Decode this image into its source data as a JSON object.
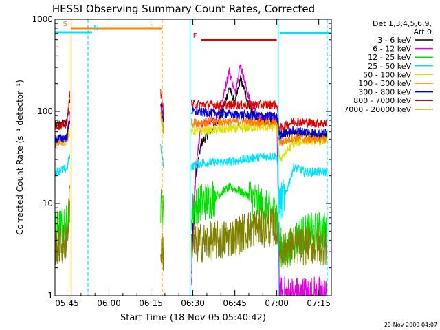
{
  "chart_data": {
    "type": "line",
    "title": "HESSI Observing Summary Count Rates, Corrected",
    "xlabel": "Start Time (18-Nov-05 05:40:42)",
    "ylabel": "Corrected Count Rate (s⁻¹ detector⁻¹)",
    "yscale": "log",
    "ylim": [
      1,
      1000
    ],
    "xlim": [
      "05:40:42",
      "07:19:30"
    ],
    "x_ticks": [
      "05:45",
      "06:00",
      "06:15",
      "06:30",
      "06:45",
      "07:00",
      "07:15"
    ],
    "y_ticks": [
      "1",
      "10",
      "100",
      "1000"
    ],
    "legend_title": "Det 1,3,4,5,6,9,\nAtt 0",
    "legend_position": "right",
    "footer_date": "29-Nov-2009 04:07",
    "flags": [
      {
        "label": "S",
        "start": "05:46:30",
        "end": "06:19:00",
        "color": "#ff8000"
      },
      {
        "label": "N",
        "start": "05:40:42",
        "end": "05:54:00",
        "color": "#00e0ff"
      },
      {
        "label": "F",
        "start": "06:33:00",
        "end": "07:00:00",
        "color": "#e00000"
      },
      {
        "label": "",
        "start": "07:01:00",
        "end": "07:19:30",
        "color": "#00e0ff"
      }
    ],
    "vlines": [
      {
        "t": "05:46:30",
        "color": "#ff8000",
        "style": "solid"
      },
      {
        "t": "05:52:30",
        "color": "#00e0ff",
        "style": "dashed"
      },
      {
        "t": "06:19:00",
        "color": "#ff8000",
        "style": "dashed"
      },
      {
        "t": "06:29:00",
        "color": "#00e0ff",
        "style": "solid"
      },
      {
        "t": "07:00:30",
        "color": "#00e0ff",
        "style": "solid"
      },
      {
        "t": "07:18:00",
        "color": "#00e0ff",
        "style": "dashed"
      }
    ],
    "segments": [
      {
        "start": "05:40:42",
        "end": "05:46:00"
      },
      {
        "start": "06:18:30",
        "end": "06:19:40"
      },
      {
        "start": "06:29:30",
        "end": "07:18:00"
      }
    ],
    "series": [
      {
        "name": "3 - 6 keV",
        "color": "#000000",
        "points": [
          [
            "05:40:42",
            70
          ],
          [
            "05:45:00",
            75
          ],
          [
            "05:45:50",
            130
          ],
          [
            "06:18:30",
            120
          ],
          [
            "06:19:40",
            80
          ],
          [
            "06:29:30",
            2
          ],
          [
            "06:31:00",
            20
          ],
          [
            "06:33:00",
            45
          ],
          [
            "06:36:00",
            60
          ],
          [
            "06:40:00",
            90
          ],
          [
            "06:43:00",
            180
          ],
          [
            "06:45:00",
            120
          ],
          [
            "06:47:00",
            230
          ],
          [
            "06:50:00",
            120
          ],
          [
            "06:53:00",
            80
          ],
          [
            "06:58:00",
            80
          ],
          [
            "07:00:00",
            78
          ],
          [
            "07:01:00",
            60
          ],
          [
            "07:03:00",
            58
          ],
          [
            "07:06:00",
            58
          ],
          [
            "07:10:00",
            56
          ],
          [
            "07:15:00",
            54
          ],
          [
            "07:18:00",
            53
          ]
        ]
      },
      {
        "name": "6 - 12 keV",
        "color": "#e000e0",
        "points": [
          [
            "05:40:42",
            45
          ],
          [
            "05:45:00",
            48
          ],
          [
            "05:45:50",
            90
          ],
          [
            "06:18:30",
            110
          ],
          [
            "06:19:40",
            70
          ],
          [
            "06:29:30",
            1.5
          ],
          [
            "06:31:00",
            25
          ],
          [
            "06:33:00",
            70
          ],
          [
            "06:35:00",
            75
          ],
          [
            "06:38:00",
            80
          ],
          [
            "06:41:00",
            150
          ],
          [
            "06:43:00",
            280
          ],
          [
            "06:45:00",
            160
          ],
          [
            "06:47:00",
            320
          ],
          [
            "06:50:00",
            140
          ],
          [
            "06:53:00",
            90
          ],
          [
            "06:58:00",
            85
          ],
          [
            "07:00:00",
            82
          ],
          [
            "07:01:00",
            1
          ],
          [
            "07:18:00",
            1
          ]
        ]
      },
      {
        "name": "12 - 25 keV",
        "color": "#00e000",
        "points": [
          [
            "05:40:42",
            5
          ],
          [
            "05:45:00",
            6
          ],
          [
            "05:45:50",
            9
          ],
          [
            "06:18:30",
            10
          ],
          [
            "06:19:40",
            7
          ],
          [
            "06:29:30",
            8
          ],
          [
            "06:32:00",
            10
          ],
          [
            "06:36:00",
            11
          ],
          [
            "06:40:00",
            13
          ],
          [
            "06:43:00",
            15
          ],
          [
            "06:46:00",
            14
          ],
          [
            "06:50:00",
            12
          ],
          [
            "06:55:00",
            9
          ],
          [
            "06:58:00",
            8
          ],
          [
            "07:00:00",
            8
          ],
          [
            "07:01:00",
            3.5
          ],
          [
            "07:03:00",
            3
          ],
          [
            "07:08:00",
            4.5
          ],
          [
            "07:15:00",
            5
          ],
          [
            "07:18:00",
            5
          ]
        ]
      },
      {
        "name": "25 - 50 keV",
        "color": "#00e0ff",
        "points": [
          [
            "05:40:42",
            22
          ],
          [
            "05:45:00",
            24
          ],
          [
            "05:45:50",
            32
          ],
          [
            "06:18:30",
            40
          ],
          [
            "06:19:40",
            25
          ],
          [
            "06:29:30",
            25
          ],
          [
            "06:32:00",
            27
          ],
          [
            "06:36:00",
            28
          ],
          [
            "06:42:00",
            28
          ],
          [
            "06:48:00",
            30
          ],
          [
            "06:54:00",
            32
          ],
          [
            "07:00:00",
            33
          ],
          [
            "07:01:00",
            10
          ],
          [
            "07:03:00",
            12
          ],
          [
            "07:06:00",
            25
          ],
          [
            "07:10:00",
            22
          ],
          [
            "07:15:00",
            22
          ],
          [
            "07:18:00",
            22
          ]
        ]
      },
      {
        "name": "50 - 100 keV",
        "color": "#e0e000",
        "points": [
          [
            "05:40:42",
            45
          ],
          [
            "05:45:00",
            47
          ],
          [
            "05:45:50",
            60
          ],
          [
            "06:18:30",
            90
          ],
          [
            "06:19:40",
            55
          ],
          [
            "06:29:30",
            60
          ],
          [
            "06:34:00",
            62
          ],
          [
            "06:40:00",
            63
          ],
          [
            "06:46:00",
            65
          ],
          [
            "06:52:00",
            67
          ],
          [
            "07:00:00",
            68
          ],
          [
            "07:01:00",
            30
          ],
          [
            "07:03:00",
            35
          ],
          [
            "07:06:00",
            45
          ],
          [
            "07:10:00",
            48
          ],
          [
            "07:15:00",
            48
          ],
          [
            "07:18:00",
            48
          ]
        ]
      },
      {
        "name": "100 - 300 keV",
        "color": "#ff8000",
        "points": [
          [
            "05:40:42",
            48
          ],
          [
            "05:45:00",
            50
          ],
          [
            "05:45:50",
            70
          ],
          [
            "06:18:30",
            100
          ],
          [
            "06:19:40",
            60
          ],
          [
            "06:29:30",
            75
          ],
          [
            "06:34:00",
            76
          ],
          [
            "06:40:00",
            77
          ],
          [
            "06:46:00",
            78
          ],
          [
            "06:52:00",
            77
          ],
          [
            "07:00:00",
            75
          ],
          [
            "07:01:00",
            45
          ],
          [
            "07:03:00",
            48
          ],
          [
            "07:06:00",
            52
          ],
          [
            "07:10:00",
            50
          ],
          [
            "07:15:00",
            50
          ],
          [
            "07:18:00",
            50
          ]
        ]
      },
      {
        "name": "300 - 800 keV",
        "color": "#0000e0",
        "points": [
          [
            "05:40:42",
            50
          ],
          [
            "05:45:00",
            52
          ],
          [
            "05:45:50",
            80
          ],
          [
            "06:18:30",
            130
          ],
          [
            "06:19:40",
            75
          ],
          [
            "06:29:30",
            100
          ],
          [
            "06:34:00",
            97
          ],
          [
            "06:40:00",
            95
          ],
          [
            "06:46:00",
            92
          ],
          [
            "06:52:00",
            90
          ],
          [
            "07:00:00",
            88
          ],
          [
            "07:01:00",
            55
          ],
          [
            "07:03:00",
            58
          ],
          [
            "07:06:00",
            62
          ],
          [
            "07:10:00",
            60
          ],
          [
            "07:15:00",
            58
          ],
          [
            "07:18:00",
            58
          ]
        ]
      },
      {
        "name": "800 - 7000 keV",
        "color": "#e00000",
        "points": [
          [
            "05:40:42",
            70
          ],
          [
            "05:45:00",
            72
          ],
          [
            "05:45:50",
            150
          ],
          [
            "06:18:30",
            160
          ],
          [
            "06:19:40",
            95
          ],
          [
            "06:29:30",
            120
          ],
          [
            "06:34:00",
            118
          ],
          [
            "06:40:00",
            117
          ],
          [
            "06:46:00",
            117
          ],
          [
            "06:52:00",
            118
          ],
          [
            "07:00:00",
            118
          ],
          [
            "07:01:00",
            65
          ],
          [
            "07:03:00",
            70
          ],
          [
            "07:06:00",
            78
          ],
          [
            "07:10:00",
            76
          ],
          [
            "07:15:00",
            74
          ],
          [
            "07:18:00",
            74
          ]
        ]
      },
      {
        "name": "7000 - 20000 keV",
        "color": "#808000",
        "points": [
          [
            "05:40:42",
            3.5
          ],
          [
            "05:45:00",
            3.6
          ],
          [
            "05:45:50",
            15
          ],
          [
            "06:18:30",
            3
          ],
          [
            "06:19:40",
            3
          ],
          [
            "06:29:30",
            3.5
          ],
          [
            "06:34:00",
            3.8
          ],
          [
            "06:40:00",
            4
          ],
          [
            "06:46:00",
            4.5
          ],
          [
            "06:52:00",
            5.5
          ],
          [
            "07:00:00",
            5.5
          ],
          [
            "07:01:00",
            3
          ],
          [
            "07:06:00",
            3.5
          ],
          [
            "07:10:00",
            3.5
          ],
          [
            "07:15:00",
            3.5
          ],
          [
            "07:18:00",
            3.5
          ]
        ]
      }
    ]
  }
}
